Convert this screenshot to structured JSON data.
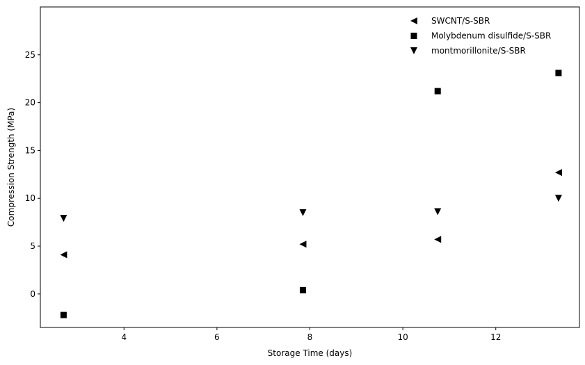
{
  "chart_data": {
    "type": "scatter",
    "title": "",
    "xlabel": "Storage Time (days)",
    "ylabel": "Compression Strength (MPa)",
    "xlim": [
      2.2,
      13.8
    ],
    "ylim": [
      -3.5,
      30.0
    ],
    "xticks": [
      4,
      6,
      8,
      10,
      12
    ],
    "yticks": [
      0,
      5,
      10,
      15,
      20,
      25
    ],
    "grid": false,
    "legend_position": "top-right",
    "marker_color": "#000000",
    "series": [
      {
        "name": "SWCNT/S-SBR",
        "marker": "triangle-left",
        "points": [
          {
            "x": 2.7,
            "y": 4.1
          },
          {
            "x": 7.85,
            "y": 5.2
          },
          {
            "x": 10.75,
            "y": 5.7
          },
          {
            "x": 13.35,
            "y": 12.7
          }
        ]
      },
      {
        "name": "Molybdenum disulfide/S-SBR",
        "marker": "square",
        "points": [
          {
            "x": 2.7,
            "y": -2.2
          },
          {
            "x": 7.85,
            "y": 0.4
          },
          {
            "x": 10.75,
            "y": 21.2
          },
          {
            "x": 13.35,
            "y": 23.1
          }
        ]
      },
      {
        "name": "montmorillonite/S-SBR",
        "marker": "triangle-down",
        "points": [
          {
            "x": 2.7,
            "y": 7.9
          },
          {
            "x": 7.85,
            "y": 8.5
          },
          {
            "x": 10.75,
            "y": 8.6
          },
          {
            "x": 13.35,
            "y": 10.0
          }
        ]
      }
    ]
  }
}
